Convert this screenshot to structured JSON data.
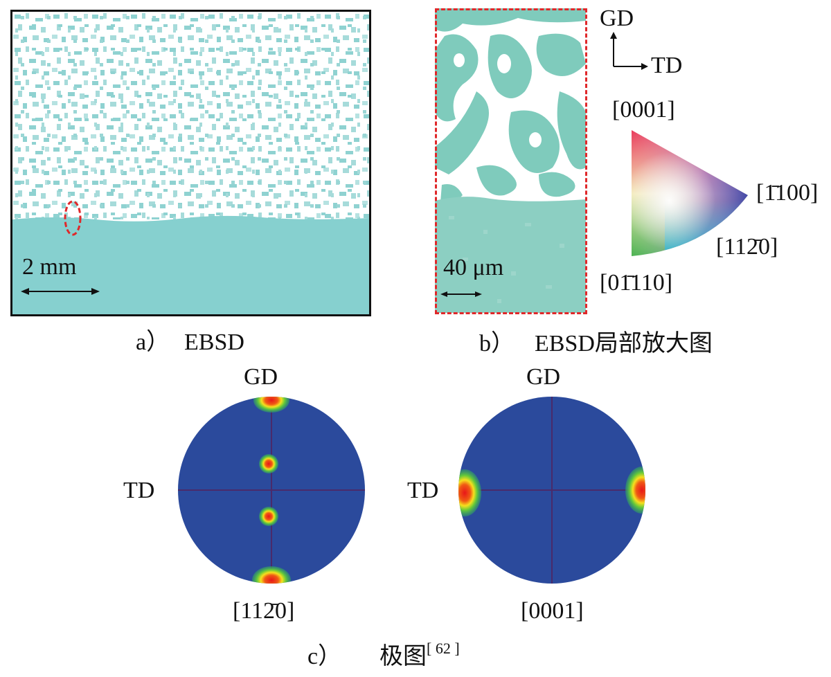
{
  "panel_a": {
    "scale_label": "2 mm",
    "caption_letter": "a）",
    "caption_text": "EBSD"
  },
  "panel_b": {
    "scale_label": "40 μm",
    "caption_letter": "b）",
    "caption_text": "EBSD局部放大图"
  },
  "axes_legend": {
    "gd": "GD",
    "td": "TD"
  },
  "ipf_key": {
    "top": "[0001]",
    "right": "[1̄100]",
    "mid": "[112̄0]",
    "bottom": "[01̄110]"
  },
  "pole_figures": {
    "left": {
      "top_label": "GD",
      "side_label": "TD",
      "bottom_label": "[112̄0]"
    },
    "right": {
      "top_label": "GD",
      "side_label": "TD",
      "bottom_label": "[0001]"
    }
  },
  "panel_c": {
    "caption_letter": "c）",
    "caption_text": "极图",
    "citation": "[ 62 ]"
  },
  "colors": {
    "ebsd_teal": "#86d0cf",
    "dash_red": "#e0282a",
    "pole_blue": "#2b4a9c"
  }
}
